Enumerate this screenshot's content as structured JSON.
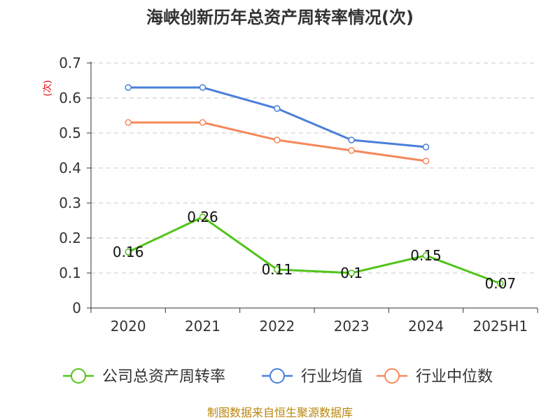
{
  "chart_data": {
    "type": "line",
    "title": "海峡创新历年总资产周转率情况(次)",
    "ylabel": "(次)",
    "categories": [
      "2020",
      "2021",
      "2022",
      "2023",
      "2024",
      "2025H1"
    ],
    "ylim": [
      0,
      0.7
    ],
    "yticks": [
      "0",
      "0.1",
      "0.2",
      "0.3",
      "0.4",
      "0.5",
      "0.6",
      "0.7"
    ],
    "grid": true,
    "legend_position": "bottom",
    "series": [
      {
        "name": "公司总资产周转率",
        "color": "#52c41a",
        "values": [
          0.16,
          0.26,
          0.11,
          0.1,
          0.15,
          0.07
        ],
        "labels": [
          "0.16",
          "0.26",
          "0.11",
          "0.1",
          "0.15",
          "0.07"
        ]
      },
      {
        "name": "行业均值",
        "color": "#4a7fdb",
        "values": [
          0.63,
          0.63,
          0.57,
          0.48,
          0.46,
          null
        ]
      },
      {
        "name": "行业中位数",
        "color": "#f5885a",
        "values": [
          0.53,
          0.53,
          0.48,
          0.45,
          0.42,
          null
        ]
      }
    ]
  },
  "source": "制图数据来自恒生聚源数据库"
}
